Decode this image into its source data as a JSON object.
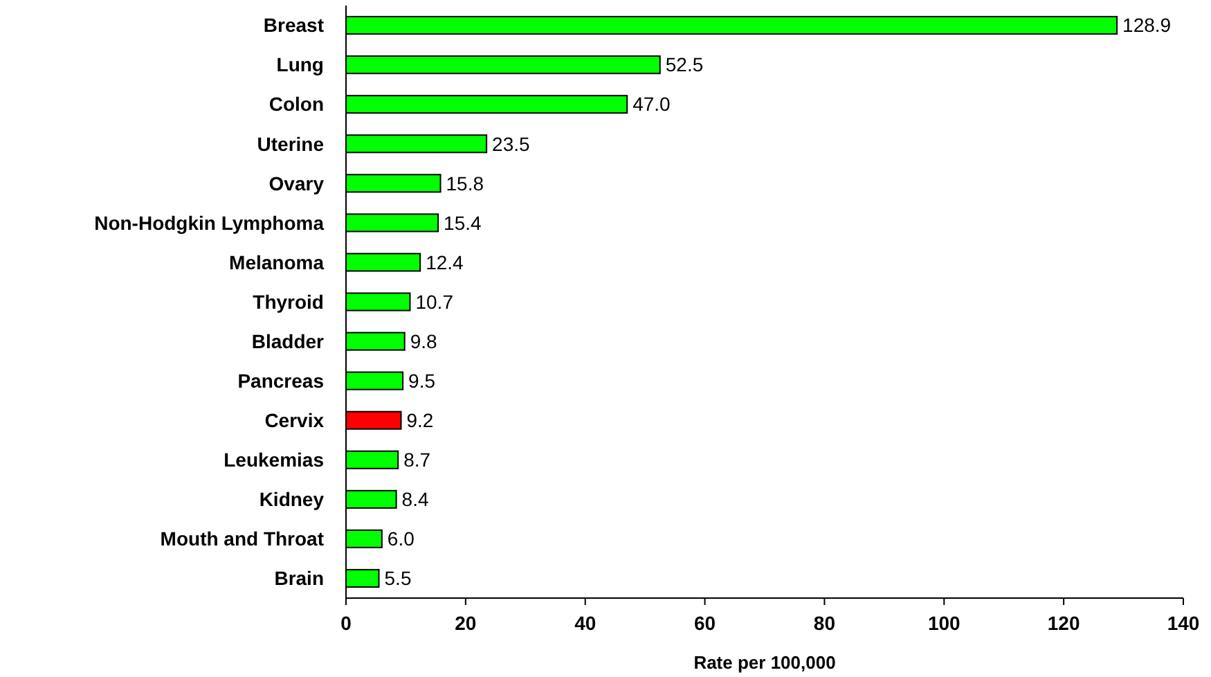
{
  "chart_data": {
    "type": "bar",
    "orientation": "horizontal",
    "xlabel": "Rate per 100,000",
    "categories": [
      "Breast",
      "Lung",
      "Colon",
      "Uterine",
      "Ovary",
      "Non-Hodgkin Lymphoma",
      "Melanoma",
      "Thyroid",
      "Bladder",
      "Pancreas",
      "Cervix",
      "Leukemias",
      "Kidney",
      "Mouth and Throat",
      "Brain"
    ],
    "values": [
      128.9,
      52.5,
      47.0,
      23.5,
      15.8,
      15.4,
      12.4,
      10.7,
      9.8,
      9.5,
      9.2,
      8.7,
      8.4,
      6.0,
      5.5
    ],
    "value_labels": [
      "128.9",
      "52.5",
      "47.0",
      "23.5",
      "15.8",
      "15.4",
      "12.4",
      "10.7",
      "9.8",
      "9.5",
      "9.2",
      "8.7",
      "8.4",
      "6.0",
      "5.5"
    ],
    "colors": [
      "#00ff00",
      "#00ff00",
      "#00ff00",
      "#00ff00",
      "#00ff00",
      "#00ff00",
      "#00ff00",
      "#00ff00",
      "#00ff00",
      "#00ff00",
      "#ff0000",
      "#00ff00",
      "#00ff00",
      "#00ff00",
      "#00ff00"
    ],
    "xlim": [
      0,
      140
    ],
    "xticks": [
      0,
      20,
      40,
      60,
      80,
      100,
      120,
      140
    ],
    "grid": false
  }
}
